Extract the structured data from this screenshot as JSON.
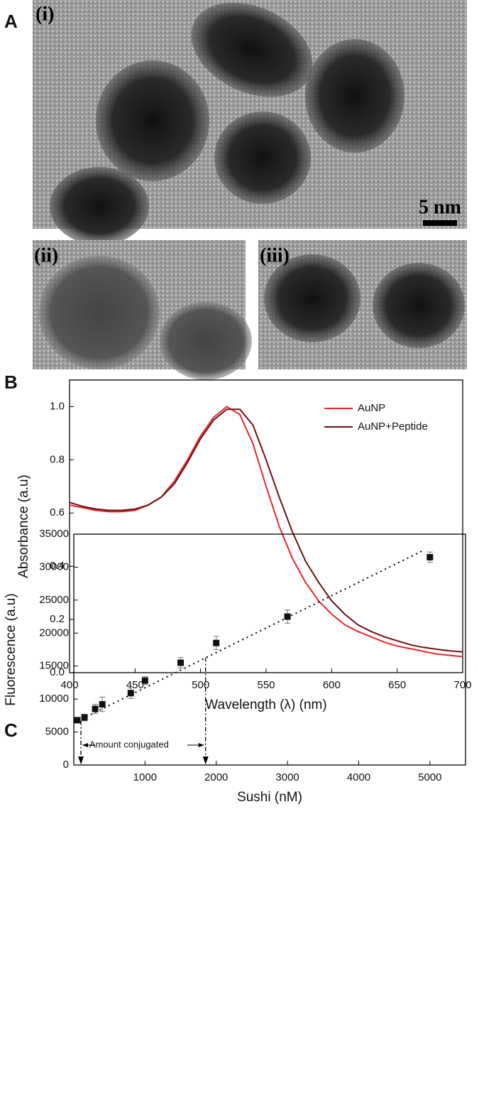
{
  "panel_a": {
    "label": "A",
    "images": [
      "(i)",
      "(ii)",
      "(iii)"
    ],
    "scale_bar": "5 nm"
  },
  "chart_data": [
    {
      "type": "line",
      "panel": "B",
      "xlabel": "Wavelength (λ) (nm)",
      "ylabel": "Absorbance (a.u)",
      "x": [
        400,
        410,
        420,
        430,
        440,
        450,
        460,
        470,
        480,
        490,
        500,
        510,
        520,
        530,
        540,
        550,
        560,
        570,
        580,
        590,
        600,
        610,
        620,
        630,
        640,
        650,
        660,
        670,
        680,
        690,
        700
      ],
      "series": [
        {
          "name": "AuNP",
          "color": "#e8262a",
          "values": [
            0.63,
            0.62,
            0.61,
            0.605,
            0.605,
            0.61,
            0.63,
            0.66,
            0.72,
            0.8,
            0.89,
            0.96,
            1.0,
            0.97,
            0.86,
            0.7,
            0.55,
            0.43,
            0.34,
            0.27,
            0.22,
            0.18,
            0.155,
            0.135,
            0.115,
            0.1,
            0.09,
            0.08,
            0.07,
            0.065,
            0.06
          ]
        },
        {
          "name": "AuNP+Peptide",
          "color": "#6b0f12",
          "values": [
            0.64,
            0.625,
            0.615,
            0.61,
            0.61,
            0.615,
            0.63,
            0.66,
            0.71,
            0.79,
            0.88,
            0.95,
            0.99,
            0.99,
            0.93,
            0.8,
            0.66,
            0.53,
            0.42,
            0.34,
            0.27,
            0.22,
            0.18,
            0.155,
            0.135,
            0.12,
            0.105,
            0.095,
            0.088,
            0.082,
            0.078
          ]
        }
      ],
      "xlim": [
        400,
        700
      ],
      "xticks": [
        400,
        450,
        500,
        550,
        600,
        650,
        700
      ],
      "ylim": [
        0,
        1.1
      ],
      "yticks": [
        {
          "value": 0,
          "label": "0.0"
        },
        0.2,
        0.4,
        0.6,
        0.8,
        {
          "value": 1,
          "label": "1.0"
        }
      ],
      "legend": "top-right"
    },
    {
      "type": "scatter",
      "panel": "C",
      "xlabel": "Sushi (nM)",
      "ylabel": "Fluorescence (a.u)",
      "x": [
        50,
        150,
        300,
        400,
        800,
        1000,
        1500,
        2000,
        3000,
        5000
      ],
      "values": [
        6800,
        7200,
        8500,
        9200,
        10900,
        12800,
        15500,
        18500,
        22500,
        31500
      ],
      "errors": [
        300,
        500,
        700,
        1100,
        800,
        600,
        800,
        1000,
        1000,
        800
      ],
      "color": "#111111",
      "fit": {
        "x": [
          50,
          4900
        ],
        "values": [
          6650,
          32500
        ]
      },
      "guides": [
        {
          "x": 100,
          "top": 6700
        },
        {
          "x": 1850,
          "top": 16300
        }
      ],
      "annotation": "Amount conjugated",
      "xlim": [
        0,
        5500
      ],
      "xticks": [
        1000,
        2000,
        3000,
        4000,
        5000
      ],
      "ylim": [
        0,
        35000
      ],
      "yticks": [
        0,
        5000,
        10000,
        15000,
        20000,
        25000,
        30000,
        35000
      ]
    }
  ]
}
